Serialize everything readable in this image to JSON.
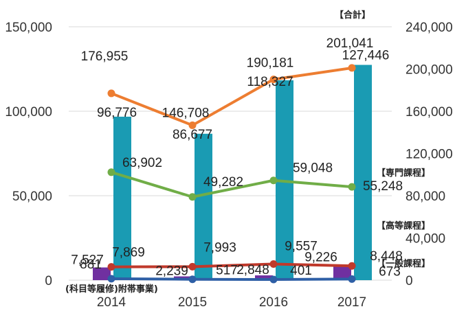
{
  "chart_data": {
    "type": "bar+line",
    "categories": [
      "2014",
      "2015",
      "2016",
      "2017"
    ],
    "left_axis": {
      "range": [
        0,
        150000
      ],
      "ticks": [
        "0",
        "50,000",
        "100,000",
        "150,000"
      ]
    },
    "right_axis": {
      "range": [
        0,
        240000
      ],
      "ticks": [
        "0",
        "40,000",
        "80,000",
        "120,000",
        "160,000",
        "200,000",
        "240,000"
      ]
    },
    "grid": true,
    "series": [
      {
        "key": "general",
        "type": "bar",
        "axis": "left",
        "color": "#1a9bb3",
        "values": [
          96776,
          86677,
          118327,
          127446
        ],
        "labels": [
          "96,776",
          "86,677",
          "118,327",
          "127,446"
        ]
      },
      {
        "key": "subsidiary",
        "type": "bar",
        "axis": "left",
        "color": "#7030a0",
        "values": [
          7527,
          2239,
          2848,
          9226
        ],
        "labels": [
          "7,527",
          "2,239",
          "2,848",
          "9,226"
        ]
      },
      {
        "key": "total",
        "type": "line",
        "axis": "right",
        "color": "#ed7d31",
        "values": [
          176955,
          146708,
          190181,
          201041
        ],
        "labels": [
          "176,955",
          "146,708",
          "190,181",
          "201,041"
        ]
      },
      {
        "key": "specialized",
        "type": "line",
        "axis": "left",
        "color": "#70ad47",
        "values": [
          63902,
          49282,
          59048,
          55248
        ],
        "labels": [
          "63,902",
          "49,282",
          "59,048",
          "55,248"
        ]
      },
      {
        "key": "high_school",
        "type": "line",
        "axis": "left",
        "color": "#c0392b",
        "values": [
          7869,
          7993,
          9557,
          8448
        ],
        "labels": [
          "7,869",
          "7,993",
          "9,557",
          "8,448"
        ]
      },
      {
        "key": "subsidiary_line",
        "type": "line",
        "axis": "left",
        "color": "#2e5fa6",
        "values": [
          881,
          517,
          401,
          673
        ],
        "labels": [
          "881",
          "517",
          "401",
          "673"
        ]
      }
    ],
    "annotations": {
      "total": "【合計】",
      "specialized": "【専門課程】",
      "high_school": "【高等課程】",
      "general": "【一般課程】",
      "subsidiary": "(科目等履修)附帯事業)"
    }
  }
}
